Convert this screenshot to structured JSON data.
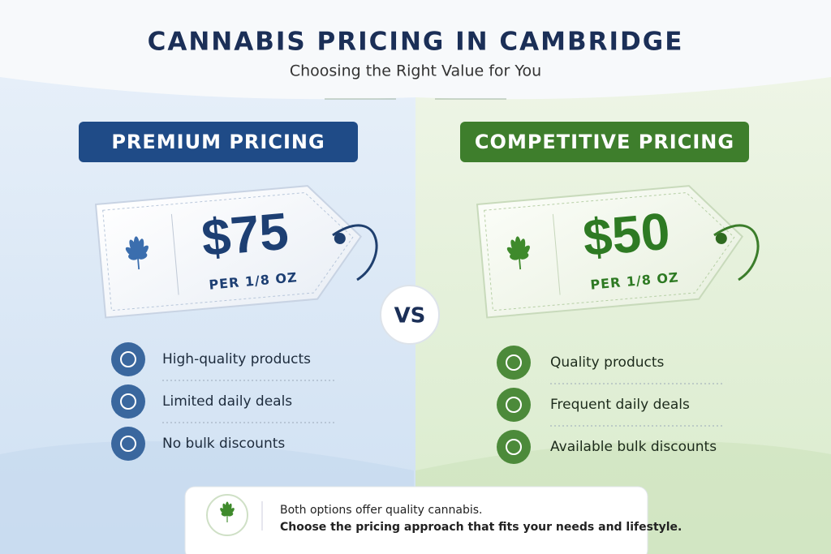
{
  "header": {
    "title": "CANNABIS PRICING IN CAMBRIDGE",
    "subtitle": "Choosing the Right Value for You"
  },
  "left": {
    "label": "PREMIUM PRICING",
    "price": "$75",
    "unit": "PER 1/8 OZ",
    "features": [
      "High-quality products",
      "Limited daily deals",
      "No bulk discounts"
    ]
  },
  "vs": "VS",
  "right": {
    "label": "COMPETITIVE PRICING",
    "price": "$50",
    "unit": "PER 1/8 OZ",
    "features": [
      "Quality products",
      "Frequent daily deals",
      "Available bulk discounts"
    ]
  },
  "footer": {
    "line1": "Both options offer quality cannabis.",
    "line2": "Choose the pricing approach that fits your needs and lifestyle."
  }
}
